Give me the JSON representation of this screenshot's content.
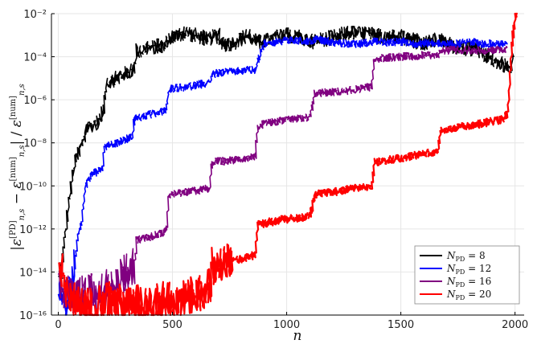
{
  "chart_data": {
    "type": "line",
    "title": "",
    "xlabel": "n",
    "ylabel": "|ε[PD]n,s − ε[num]n,s| / ε[num]n,s",
    "xlim": [
      -30,
      2040
    ],
    "ylim_exp": [
      -16,
      -2
    ],
    "yscale": "log",
    "grid": true,
    "legend_position": "bottom-right",
    "x_ticks": [
      0,
      500,
      1000,
      1500,
      2000
    ],
    "x_tick_labels": [
      "0",
      "500",
      "1000",
      "1500",
      "2000"
    ],
    "y_tick_exponents": [
      -16,
      -14,
      -12,
      -10,
      -8,
      -6,
      -4,
      -2
    ],
    "y_tick_labels": [
      "10⁻¹⁶",
      "10⁻¹⁴",
      "10⁻¹²",
      "10⁻¹⁰",
      "10⁻⁸",
      "10⁻⁶",
      "10⁻⁴",
      "10⁻²"
    ],
    "series": [
      {
        "name": "N_PD = 8",
        "name_main": "N",
        "name_sub": "PD",
        "name_rest": " = 8",
        "color": "#000000",
        "log10_points": [
          [
            0,
            -14.5
          ],
          [
            20,
            -13
          ],
          [
            40,
            -11
          ],
          [
            60,
            -9.5
          ],
          [
            80,
            -8.5
          ],
          [
            100,
            -8.2
          ],
          [
            115,
            -7.5
          ],
          [
            140,
            -7.2
          ],
          [
            175,
            -7
          ],
          [
            195,
            -6.5
          ],
          [
            205,
            -5.2
          ],
          [
            250,
            -5
          ],
          [
            330,
            -4.6
          ],
          [
            340,
            -3.7
          ],
          [
            400,
            -3.6
          ],
          [
            470,
            -3.4
          ],
          [
            480,
            -3.1
          ],
          [
            520,
            -3
          ],
          [
            560,
            -2.9
          ],
          [
            600,
            -3.0
          ],
          [
            650,
            -3.2
          ],
          [
            700,
            -3.0
          ],
          [
            720,
            -3.5
          ],
          [
            780,
            -3.3
          ],
          [
            820,
            -3.0
          ],
          [
            870,
            -3.3
          ],
          [
            900,
            -3.3
          ],
          [
            950,
            -3.1
          ],
          [
            1000,
            -3.0
          ],
          [
            1050,
            -3.1
          ],
          [
            1100,
            -3.3
          ],
          [
            1150,
            -3.2
          ],
          [
            1200,
            -3.1
          ],
          [
            1260,
            -2.9
          ],
          [
            1330,
            -2.9
          ],
          [
            1380,
            -3.0
          ],
          [
            1420,
            -3.1
          ],
          [
            1480,
            -3.0
          ],
          [
            1540,
            -3.2
          ],
          [
            1600,
            -3.4
          ],
          [
            1660,
            -3.2
          ],
          [
            1720,
            -3.5
          ],
          [
            1780,
            -3.6
          ],
          [
            1830,
            -3.7
          ],
          [
            1880,
            -4.0
          ],
          [
            1930,
            -4.3
          ],
          [
            1960,
            -4.4
          ],
          [
            1980,
            -4.6
          ],
          [
            1990,
            -4.0
          ]
        ]
      },
      {
        "name": "N_PD = 12",
        "name_main": "N",
        "name_sub": "PD",
        "name_rest": " = 12",
        "color": "#0000ff",
        "log10_points": [
          [
            0,
            -14.5
          ],
          [
            30,
            -15.8
          ],
          [
            60,
            -14.5
          ],
          [
            80,
            -12.5
          ],
          [
            100,
            -11.5
          ],
          [
            115,
            -10
          ],
          [
            140,
            -9.5
          ],
          [
            190,
            -9.2
          ],
          [
            200,
            -8.2
          ],
          [
            260,
            -8.0
          ],
          [
            320,
            -7.7
          ],
          [
            330,
            -6.9
          ],
          [
            390,
            -6.7
          ],
          [
            470,
            -6.5
          ],
          [
            480,
            -5.5
          ],
          [
            560,
            -5.4
          ],
          [
            660,
            -5.2
          ],
          [
            670,
            -4.8
          ],
          [
            760,
            -4.7
          ],
          [
            860,
            -4.6
          ],
          [
            870,
            -4.2
          ],
          [
            900,
            -3.4
          ],
          [
            960,
            -3.3
          ],
          [
            1020,
            -3.25
          ],
          [
            1100,
            -3.3
          ],
          [
            1120,
            -3.2
          ],
          [
            1180,
            -3.3
          ],
          [
            1260,
            -3.4
          ],
          [
            1320,
            -3.4
          ],
          [
            1380,
            -3.3
          ],
          [
            1440,
            -3.35
          ],
          [
            1500,
            -3.3
          ],
          [
            1560,
            -3.4
          ],
          [
            1620,
            -3.35
          ],
          [
            1680,
            -3.4
          ],
          [
            1740,
            -3.4
          ],
          [
            1800,
            -3.3
          ],
          [
            1860,
            -3.4
          ],
          [
            1920,
            -3.4
          ],
          [
            1960,
            -3.4
          ]
        ]
      },
      {
        "name": "N_PD = 16",
        "name_main": "N",
        "name_sub": "PD",
        "name_rest": " = 16",
        "color": "#800080",
        "log10_points": [
          [
            0,
            -14.5
          ],
          [
            60,
            -15.2
          ],
          [
            120,
            -15.0
          ],
          [
            200,
            -14.8
          ],
          [
            260,
            -14.3
          ],
          [
            300,
            -14.0
          ],
          [
            330,
            -13.7
          ],
          [
            340,
            -12.5
          ],
          [
            420,
            -12.3
          ],
          [
            470,
            -12.1
          ],
          [
            480,
            -10.4
          ],
          [
            560,
            -10.3
          ],
          [
            660,
            -10.1
          ],
          [
            670,
            -8.9
          ],
          [
            760,
            -8.8
          ],
          [
            860,
            -8.6
          ],
          [
            870,
            -7.2
          ],
          [
            960,
            -7.0
          ],
          [
            1100,
            -6.8
          ],
          [
            1120,
            -5.7
          ],
          [
            1250,
            -5.6
          ],
          [
            1370,
            -5.4
          ],
          [
            1380,
            -4.1
          ],
          [
            1500,
            -4.0
          ],
          [
            1660,
            -3.9
          ],
          [
            1670,
            -3.7
          ],
          [
            1800,
            -3.7
          ],
          [
            1960,
            -3.7
          ]
        ]
      },
      {
        "name": "N_PD = 20",
        "name_main": "N",
        "name_sub": "PD",
        "name_rest": " = 20",
        "color": "#ff0000",
        "log10_points": [
          [
            0,
            -13.5
          ],
          [
            40,
            -15.3
          ],
          [
            120,
            -15.6
          ],
          [
            200,
            -15.3
          ],
          [
            300,
            -15.5
          ],
          [
            400,
            -15.4
          ],
          [
            500,
            -15.3
          ],
          [
            560,
            -15.2
          ],
          [
            620,
            -15.0
          ],
          [
            660,
            -14.6
          ],
          [
            670,
            -13.7
          ],
          [
            760,
            -13.5
          ],
          [
            860,
            -13.2
          ],
          [
            870,
            -11.8
          ],
          [
            960,
            -11.6
          ],
          [
            1100,
            -11.4
          ],
          [
            1120,
            -10.4
          ],
          [
            1250,
            -10.2
          ],
          [
            1370,
            -10.0
          ],
          [
            1380,
            -8.9
          ],
          [
            1500,
            -8.7
          ],
          [
            1660,
            -8.4
          ],
          [
            1670,
            -7.4
          ],
          [
            1800,
            -7.2
          ],
          [
            1950,
            -6.9
          ],
          [
            1965,
            -6.6
          ],
          [
            1985,
            -3.2
          ],
          [
            1998,
            -2.1
          ],
          [
            2005,
            -1.9
          ]
        ]
      }
    ]
  }
}
